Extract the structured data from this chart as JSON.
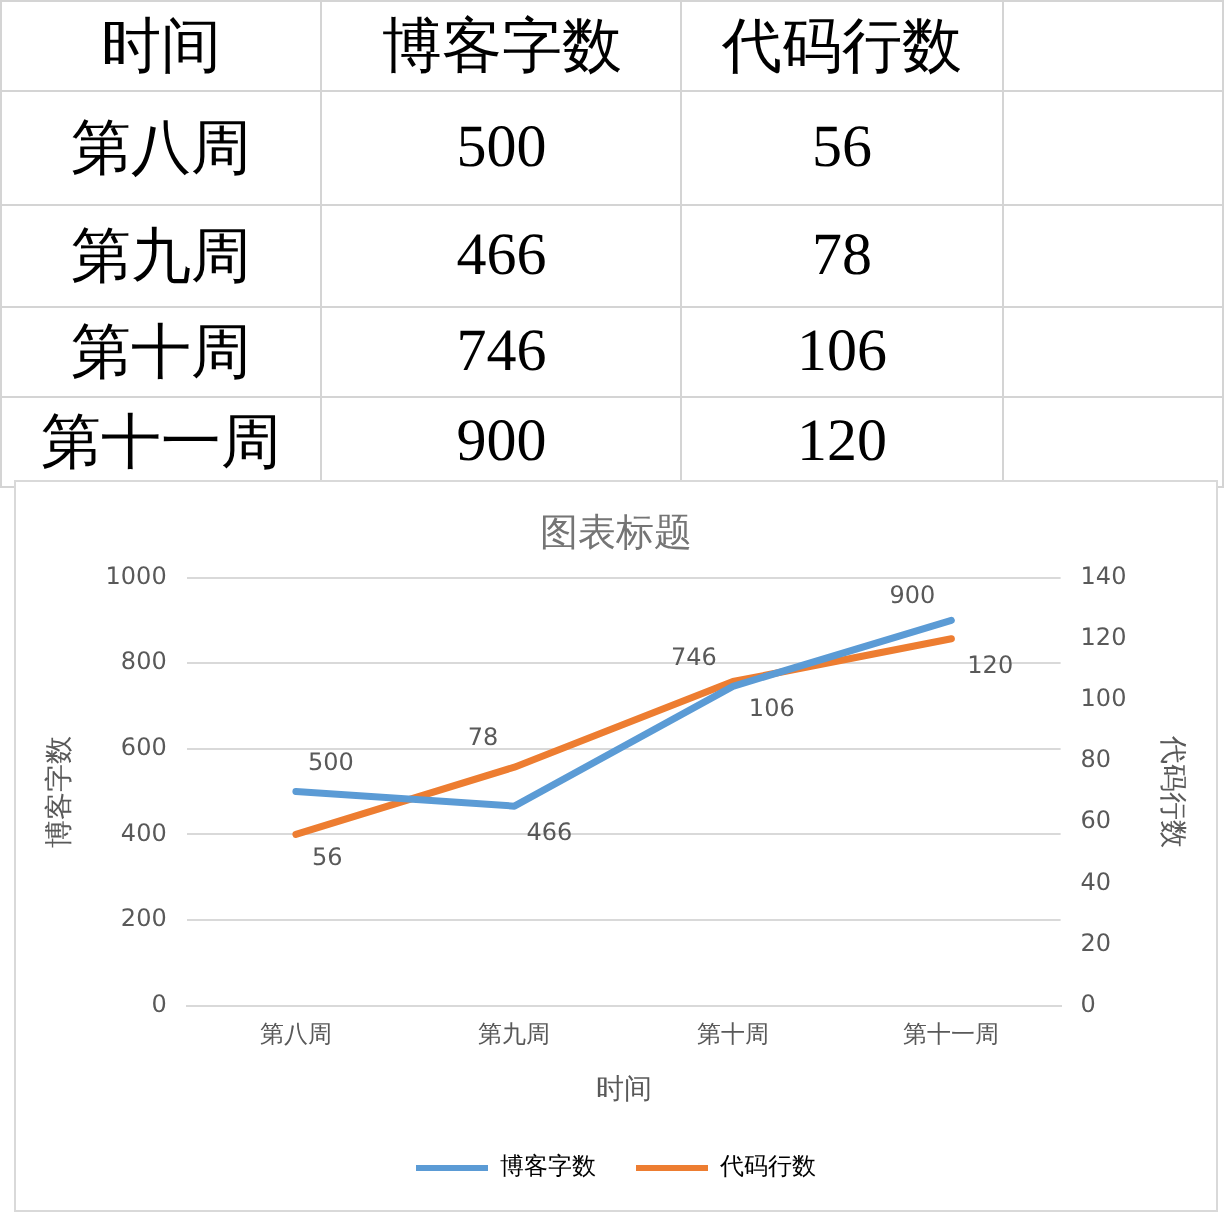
{
  "chart_data": {
    "type": "line",
    "title": "图表标题",
    "xlabel": "时间",
    "ylabel": "博客字数",
    "y2label": "代码行数",
    "categories": [
      "第八周",
      "第九周",
      "第十周",
      "第十一周"
    ],
    "series": [
      {
        "name": "博客字数",
        "color": "#5b9bd5",
        "values": [
          500,
          466,
          746,
          900
        ]
      },
      {
        "name": "代码行数",
        "color": "#ed7d31",
        "values": [
          56,
          78,
          106,
          120
        ],
        "axis": "y2"
      }
    ],
    "ylim": [
      0,
      1000
    ],
    "yticks": [
      0,
      200,
      400,
      600,
      800,
      1000
    ],
    "y2lim": [
      0,
      140
    ],
    "y2ticks": [
      0,
      20,
      40,
      60,
      80,
      100,
      120,
      140
    ],
    "annotations": [
      "500",
      "56",
      "466",
      "78",
      "746",
      "106",
      "900",
      "120"
    ],
    "grid": "y",
    "legend": "bottom",
    "marker": "none",
    "line_style": "solid",
    "data_labels": true
  }
}
